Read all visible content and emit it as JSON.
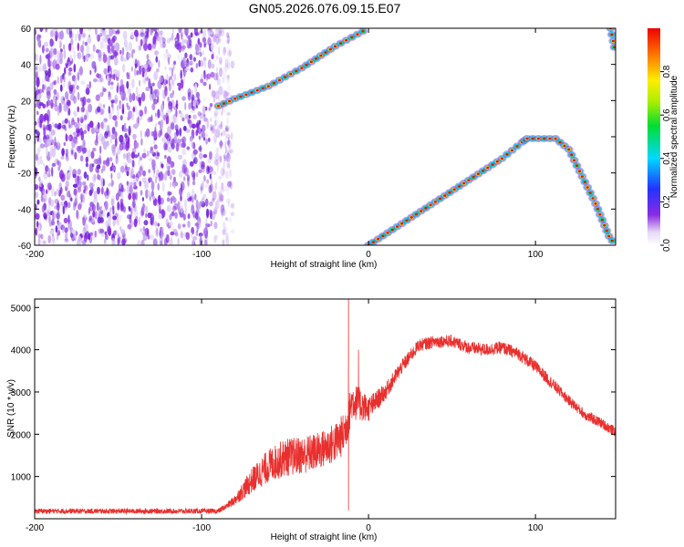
{
  "chart_data": [
    {
      "type": "heatmap",
      "title": "GN05.2026.076.09.15.E07",
      "xlabel": "Height of straight line (km)",
      "ylabel": "Frequency (Hz)",
      "xlim": [
        -200,
        148
      ],
      "ylim": [
        -60,
        60
      ],
      "xticks": [
        -200,
        -100,
        0,
        100
      ],
      "xtick_labels": [
        "-200",
        "-100",
        "0",
        "100"
      ],
      "yticks": [
        -60,
        -40,
        -20,
        0,
        20,
        40,
        60
      ],
      "ytick_labels": [
        "-60",
        "-40",
        "-20",
        "0",
        "20",
        "40",
        "60"
      ],
      "noise_region": {
        "x_range": [
          -200,
          -88
        ],
        "level": 0.1
      },
      "tracks": [
        {
          "name": "upper-track",
          "points": [
            [
              -90,
              17
            ],
            [
              -80,
              21
            ],
            [
              -60,
              28
            ],
            [
              -40,
              38
            ],
            [
              -20,
              50
            ],
            [
              0,
              60
            ]
          ]
        },
        {
          "name": "lower-track",
          "points": [
            [
              0,
              -60
            ],
            [
              20,
              -48
            ],
            [
              40,
              -36
            ],
            [
              60,
              -24
            ],
            [
              80,
              -12
            ],
            [
              92,
              -3
            ],
            [
              95,
              -1
            ],
            [
              112,
              -1
            ],
            [
              120,
              -7
            ],
            [
              128,
              -22
            ],
            [
              136,
              -37
            ],
            [
              144,
              -55
            ],
            [
              148,
              -60
            ]
          ]
        },
        {
          "name": "edge-track",
          "points": [
            [
              145,
              60
            ],
            [
              148,
              46
            ]
          ]
        }
      ],
      "colorbar": {
        "label": "Normalized spectral amplitude",
        "ticks": [
          0.0,
          0.2,
          0.4,
          0.6,
          0.8
        ],
        "tick_labels": [
          "0.0",
          "0.2",
          "0.4",
          "0.6",
          "0.8"
        ],
        "range": [
          0,
          1
        ]
      }
    },
    {
      "type": "line",
      "title": "",
      "xlabel": "Height of straight line (km)",
      "ylabel": "SNR (10 * v/v)",
      "xlim": [
        -200,
        148
      ],
      "ylim": [
        0,
        5200
      ],
      "xticks": [
        -200,
        -100,
        0,
        100
      ],
      "xtick_labels": [
        "-200",
        "-100",
        "0",
        "100"
      ],
      "yticks": [
        1000,
        2000,
        3000,
        4000,
        5000
      ],
      "ytick_labels": [
        "1000",
        "2000",
        "3000",
        "4000",
        "5000"
      ],
      "series": [
        {
          "name": "SNR",
          "color": "#e8302e",
          "x": [
            -200,
            -90,
            -85,
            -80,
            -70,
            -60,
            -50,
            -40,
            -30,
            -20,
            -15,
            -12,
            -10,
            -5,
            0,
            10,
            20,
            30,
            40,
            50,
            60,
            70,
            80,
            90,
            100,
            110,
            120,
            130,
            140,
            148
          ],
          "y": [
            180,
            180,
            300,
            450,
            900,
            1250,
            1450,
            1500,
            1600,
            1800,
            2000,
            2400,
            2800,
            2700,
            2600,
            3000,
            3600,
            4100,
            4200,
            4200,
            4050,
            4000,
            4050,
            3900,
            3600,
            3200,
            2800,
            2450,
            2250,
            2050
          ],
          "spread": [
            120,
            120,
            150,
            250,
            600,
            800,
            900,
            900,
            900,
            950,
            1000,
            1000,
            900,
            800,
            600,
            400,
            350,
            300,
            300,
            300,
            300,
            300,
            300,
            300,
            300,
            280,
            250,
            250,
            250,
            250
          ],
          "spikes": [
            [
              -12,
              5200
            ],
            [
              -12,
              200
            ],
            [
              -6,
              4000
            ]
          ]
        }
      ]
    }
  ]
}
